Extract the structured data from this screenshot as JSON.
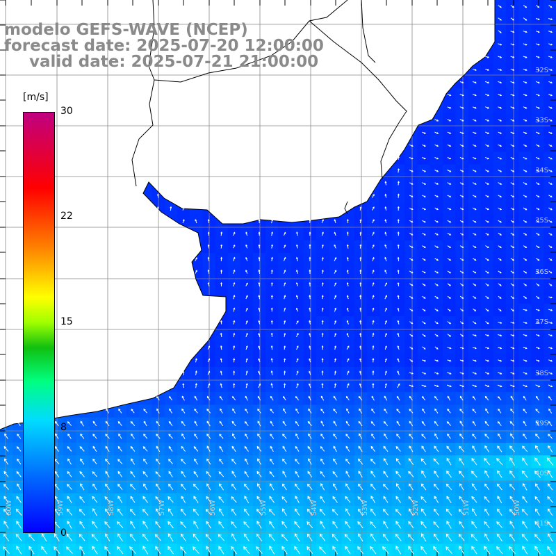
{
  "titles": {
    "model": "modelo GEFS-WAVE (NCEP)",
    "forecast": "forecast date: 2025-07-20 12:00:00",
    "valid": "valid date: 2025-07-21 21:00:00"
  },
  "colorbar": {
    "unit": "[m/s]",
    "ticks": [
      "30",
      "22",
      "15",
      "8",
      "0"
    ],
    "colors": [
      "#0000ff",
      "#0070ff",
      "#00dcff",
      "#00ff80",
      "#10c010",
      "#a0ff00",
      "#ffff00",
      "#ff8000",
      "#ff0000",
      "#c00080"
    ]
  },
  "lat_labels": [
    "32S",
    "33S",
    "34S",
    "35S",
    "36S",
    "37S",
    "38S",
    "39S",
    "40S",
    "41S"
  ],
  "lon_labels": [
    "60W",
    "59W",
    "58W",
    "57W",
    "56W",
    "55W",
    "54W",
    "53W",
    "52W",
    "51W",
    "50W"
  ],
  "colors": {
    "land": "#ffffff",
    "coast": "#000000",
    "grid": "#888888",
    "title": "#8a8a8a",
    "arrow": "#ffffff"
  }
}
